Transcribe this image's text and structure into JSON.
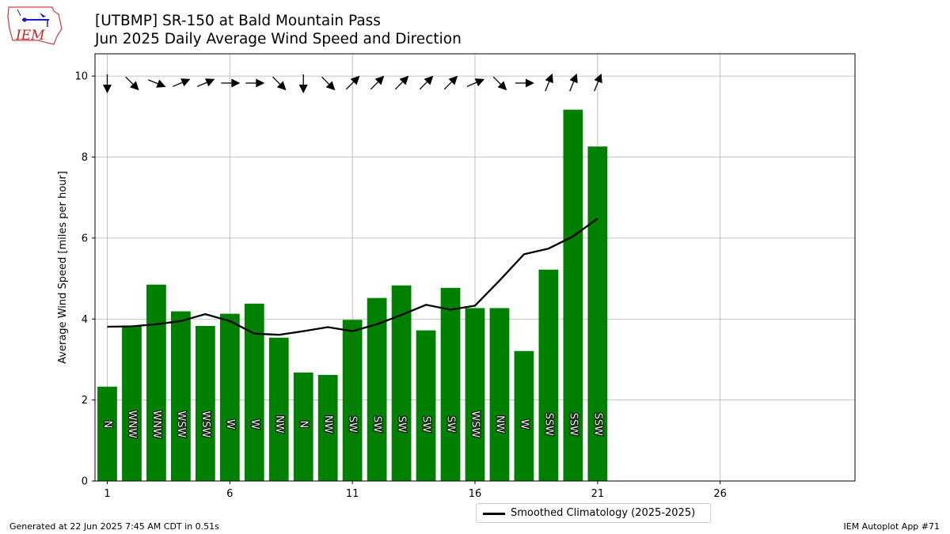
{
  "header": {
    "title_line1": "[UTBMP] SR-150 at Bald Mountain Pass",
    "title_line2": "Jun 2025 Daily Average Wind Speed and Direction"
  },
  "logo": {
    "text": "IEM",
    "color": "#cc2222"
  },
  "footer": {
    "left": "Generated at 22 Jun 2025 7:45 AM CDT in 0.51s",
    "right": "IEM Autoplot App #71"
  },
  "legend": {
    "label": "Smoothed Climatology (2025-2025)"
  },
  "chart_data": {
    "type": "bar",
    "ylabel": "Average Wind Speed [miles per hour]",
    "xlabel": "",
    "xlim": [
      0.5,
      31.5
    ],
    "ylim": [
      0,
      10.55
    ],
    "xticks": [
      1,
      6,
      11,
      16,
      21,
      26
    ],
    "yticks": [
      0,
      2,
      4,
      6,
      8,
      10
    ],
    "grid": true,
    "legend_position": "bottom-center",
    "bar_color": "#008000",
    "line_color": "#000000",
    "days": [
      1,
      2,
      3,
      4,
      5,
      6,
      7,
      8,
      9,
      10,
      11,
      12,
      13,
      14,
      15,
      16,
      17,
      18,
      19,
      20,
      21
    ],
    "values": [
      2.33,
      3.84,
      4.85,
      4.19,
      3.83,
      4.13,
      4.38,
      3.54,
      2.68,
      2.62,
      3.98,
      4.52,
      4.83,
      3.72,
      4.77,
      4.27,
      4.27,
      3.21,
      5.22,
      9.17,
      8.26
    ],
    "directions": [
      "N",
      "WNW",
      "WNW",
      "WSW",
      "WSW",
      "W",
      "W",
      "NW",
      "N",
      "NW",
      "SW",
      "SW",
      "SW",
      "SW",
      "SW",
      "WSW",
      "NW",
      "W",
      "SSW",
      "SSW",
      "SSW"
    ],
    "arrow_angles_deg": [
      180,
      135,
      112,
      67,
      67,
      90,
      90,
      135,
      180,
      135,
      45,
      45,
      45,
      45,
      45,
      67,
      135,
      90,
      22,
      22,
      22
    ],
    "series": [
      {
        "name": "Smoothed Climatology (2025-2025)",
        "type": "line",
        "x": [
          1,
          2,
          3,
          4,
          5,
          6,
          7,
          8,
          9,
          10,
          11,
          12,
          13,
          14,
          15,
          16,
          17,
          18,
          19,
          20,
          21
        ],
        "values": [
          3.81,
          3.82,
          3.87,
          3.95,
          4.12,
          3.95,
          3.64,
          3.61,
          3.7,
          3.8,
          3.7,
          3.87,
          4.1,
          4.35,
          4.23,
          4.33,
          4.95,
          5.6,
          5.74,
          6.04,
          6.48
        ]
      }
    ]
  }
}
